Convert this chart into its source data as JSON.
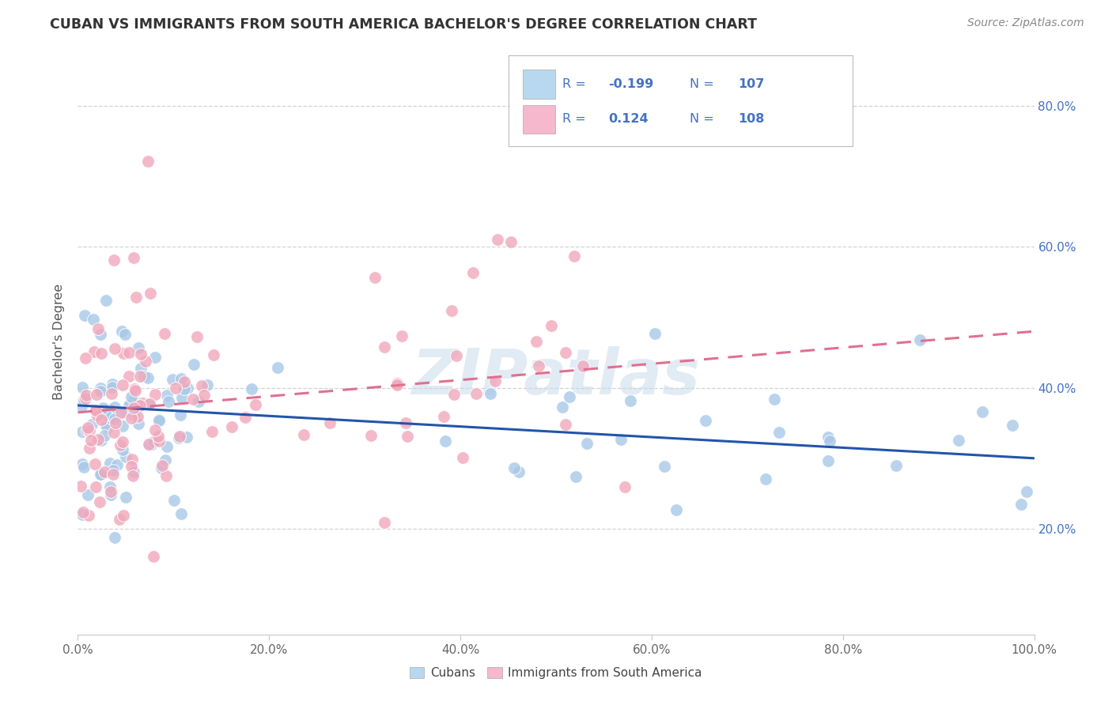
{
  "title": "CUBAN VS IMMIGRANTS FROM SOUTH AMERICA BACHELOR'S DEGREE CORRELATION CHART",
  "source": "Source: ZipAtlas.com",
  "ylabel": "Bachelor's Degree",
  "xlim": [
    0.0,
    1.0
  ],
  "ylim": [
    0.05,
    0.88
  ],
  "xtick_labels": [
    "0.0%",
    "20.0%",
    "40.0%",
    "60.0%",
    "80.0%",
    "100.0%"
  ],
  "xtick_vals": [
    0.0,
    0.2,
    0.4,
    0.6,
    0.8,
    1.0
  ],
  "ytick_labels": [
    "20.0%",
    "40.0%",
    "60.0%",
    "80.0%"
  ],
  "ytick_vals": [
    0.2,
    0.4,
    0.6,
    0.8
  ],
  "blue_color": "#A8C8E8",
  "pink_color": "#F0A8BC",
  "blue_line_color": "#2255AA",
  "pink_line_color": "#E07090",
  "legend_blue_color": "#B8D8F0",
  "legend_pink_color": "#F5B8CC",
  "legend_text_color": "#4472C4",
  "R_blue": -0.199,
  "N_blue": 107,
  "R_pink": 0.124,
  "N_pink": 108,
  "blue_slope": -0.075,
  "blue_intercept": 0.375,
  "pink_slope": 0.115,
  "pink_intercept": 0.365,
  "watermark_text": "ZIPatlas",
  "background_color": "#FFFFFF",
  "grid_color": "#C8C8C8",
  "right_ytick_color": "#4472C4",
  "title_color": "#333333",
  "source_color": "#888888",
  "tick_label_color": "#666666"
}
